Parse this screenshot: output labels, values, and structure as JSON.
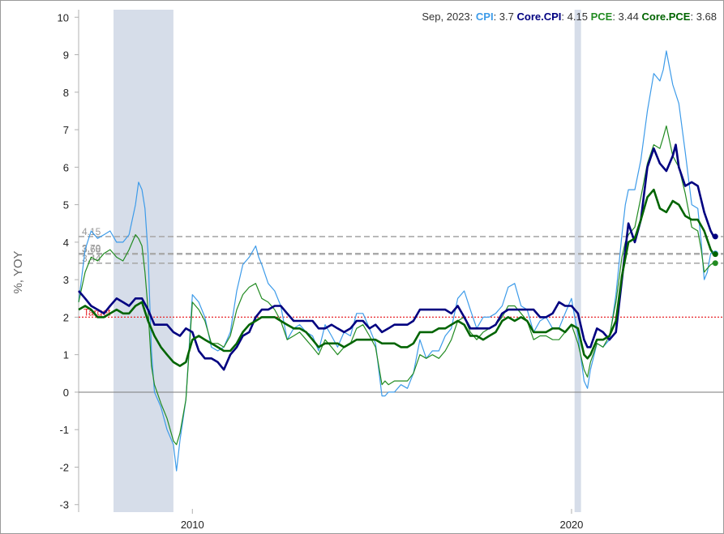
{
  "chart_data": {
    "type": "line",
    "ylabel": "%, YOY",
    "xlabel": "",
    "ylim": [
      -3.2,
      10.2
    ],
    "xlim": [
      2007.0,
      2024.0
    ],
    "yticks": [
      -3,
      -2,
      -1,
      0,
      1,
      2,
      3,
      4,
      5,
      6,
      7,
      8,
      9,
      10
    ],
    "xticks": [
      {
        "value": 2010,
        "label": "2010"
      },
      {
        "value": 2020,
        "label": "2020"
      }
    ],
    "recessions": [
      [
        2007.92,
        2009.5
      ],
      [
        2020.08,
        2020.25
      ]
    ],
    "target": {
      "value": 2,
      "label": "Target",
      "color": "#e8262a"
    },
    "legend": {
      "date_label": "Sep, 2023:",
      "items": [
        {
          "name": "CPI",
          "value": "3.7",
          "color": "#3d9be9"
        },
        {
          "name": "Core.CPI",
          "value": "4.15",
          "color": "#000080"
        },
        {
          "name": "PCE",
          "value": "3.44",
          "color": "#228b22"
        },
        {
          "name": "Core.PCE",
          "value": "3.68",
          "color": "#006400"
        }
      ]
    },
    "ref_lines": [
      {
        "value": 4.15,
        "label": "4.15"
      },
      {
        "value": 3.7,
        "label": "3.70"
      },
      {
        "value": 3.68,
        "label": "3.68"
      },
      {
        "value": 3.44,
        "label": "3.44"
      }
    ],
    "series": [
      {
        "name": "CPI",
        "color": "#3d9be9",
        "width": 1.2,
        "x": [
          2007.0,
          2007.17,
          2007.33,
          2007.5,
          2007.67,
          2007.83,
          2008.0,
          2008.17,
          2008.33,
          2008.5,
          2008.58,
          2008.67,
          2008.75,
          2008.83,
          2008.92,
          2009.0,
          2009.17,
          2009.33,
          2009.5,
          2009.58,
          2009.67,
          2009.83,
          2010.0,
          2010.17,
          2010.33,
          2010.5,
          2010.67,
          2010.83,
          2011.0,
          2011.17,
          2011.33,
          2011.5,
          2011.67,
          2011.75,
          2011.83,
          2012.0,
          2012.17,
          2012.33,
          2012.5,
          2012.67,
          2012.83,
          2013.0,
          2013.17,
          2013.33,
          2013.5,
          2013.67,
          2013.83,
          2014.0,
          2014.17,
          2014.33,
          2014.5,
          2014.67,
          2014.83,
          2015.0,
          2015.08,
          2015.17,
          2015.33,
          2015.5,
          2015.67,
          2015.83,
          2016.0,
          2016.17,
          2016.33,
          2016.5,
          2016.67,
          2016.83,
          2017.0,
          2017.17,
          2017.33,
          2017.5,
          2017.67,
          2017.83,
          2018.0,
          2018.17,
          2018.33,
          2018.5,
          2018.67,
          2018.83,
          2019.0,
          2019.17,
          2019.33,
          2019.5,
          2019.67,
          2019.83,
          2020.0,
          2020.17,
          2020.33,
          2020.42,
          2020.5,
          2020.67,
          2020.83,
          2021.0,
          2021.17,
          2021.33,
          2021.42,
          2021.5,
          2021.67,
          2021.83,
          2022.0,
          2022.17,
          2022.33,
          2022.42,
          2022.5,
          2022.67,
          2022.83,
          2023.0,
          2023.17,
          2023.33,
          2023.42,
          2023.5,
          2023.58,
          2023.67,
          2023.75
        ],
        "values": [
          2.4,
          3.8,
          4.3,
          4.1,
          4.2,
          4.3,
          4.0,
          4.0,
          4.2,
          5.0,
          5.6,
          5.4,
          4.9,
          3.7,
          1.1,
          0.0,
          -0.4,
          -1.0,
          -1.4,
          -2.1,
          -1.3,
          -0.2,
          2.6,
          2.4,
          2.0,
          1.2,
          1.1,
          1.2,
          1.6,
          2.7,
          3.4,
          3.6,
          3.9,
          3.6,
          3.4,
          2.9,
          2.7,
          2.3,
          1.4,
          1.7,
          1.8,
          1.6,
          1.5,
          1.1,
          1.8,
          1.5,
          1.2,
          1.6,
          1.5,
          2.1,
          2.1,
          1.7,
          1.3,
          -0.1,
          -0.1,
          0.0,
          0.0,
          0.2,
          0.1,
          0.5,
          1.4,
          0.9,
          1.1,
          1.1,
          1.5,
          1.7,
          2.5,
          2.7,
          2.2,
          1.7,
          2.0,
          2.0,
          2.1,
          2.3,
          2.8,
          2.9,
          2.3,
          2.2,
          1.6,
          1.9,
          2.0,
          1.7,
          1.7,
          2.1,
          2.5,
          1.5,
          0.3,
          0.1,
          0.6,
          1.3,
          1.2,
          1.4,
          2.6,
          4.2,
          5.0,
          5.4,
          5.4,
          6.2,
          7.5,
          8.5,
          8.3,
          8.6,
          9.1,
          8.2,
          7.7,
          6.4,
          5.0,
          4.9,
          4.0,
          3.0,
          3.2,
          3.7,
          3.7
        ]
      },
      {
        "name": "PCE",
        "color": "#228b22",
        "width": 1.2,
        "x": [
          2007.0,
          2007.17,
          2007.33,
          2007.5,
          2007.67,
          2007.83,
          2008.0,
          2008.17,
          2008.33,
          2008.5,
          2008.58,
          2008.67,
          2008.75,
          2008.83,
          2008.92,
          2009.0,
          2009.17,
          2009.33,
          2009.5,
          2009.58,
          2009.67,
          2009.83,
          2010.0,
          2010.17,
          2010.33,
          2010.5,
          2010.67,
          2010.83,
          2011.0,
          2011.17,
          2011.33,
          2011.5,
          2011.67,
          2011.75,
          2011.83,
          2012.0,
          2012.17,
          2012.33,
          2012.5,
          2012.67,
          2012.83,
          2013.0,
          2013.17,
          2013.33,
          2013.5,
          2013.67,
          2013.83,
          2014.0,
          2014.17,
          2014.33,
          2014.5,
          2014.67,
          2014.83,
          2015.0,
          2015.08,
          2015.17,
          2015.33,
          2015.5,
          2015.67,
          2015.83,
          2016.0,
          2016.17,
          2016.33,
          2016.5,
          2016.67,
          2016.83,
          2017.0,
          2017.17,
          2017.33,
          2017.5,
          2017.67,
          2017.83,
          2018.0,
          2018.17,
          2018.33,
          2018.5,
          2018.67,
          2018.83,
          2019.0,
          2019.17,
          2019.33,
          2019.5,
          2019.67,
          2019.83,
          2020.0,
          2020.17,
          2020.33,
          2020.42,
          2020.5,
          2020.67,
          2020.83,
          2021.0,
          2021.17,
          2021.33,
          2021.42,
          2021.5,
          2021.67,
          2021.83,
          2022.0,
          2022.17,
          2022.33,
          2022.42,
          2022.5,
          2022.67,
          2022.83,
          2023.0,
          2023.17,
          2023.33,
          2023.42,
          2023.5,
          2023.58,
          2023.67,
          2023.75
        ],
        "values": [
          2.4,
          3.2,
          3.6,
          3.5,
          3.7,
          3.8,
          3.6,
          3.5,
          3.8,
          4.2,
          4.1,
          3.9,
          3.2,
          2.2,
          0.7,
          0.2,
          -0.3,
          -0.7,
          -1.3,
          -1.4,
          -1.1,
          -0.2,
          2.4,
          2.2,
          1.9,
          1.3,
          1.3,
          1.2,
          1.5,
          2.2,
          2.6,
          2.8,
          2.9,
          2.7,
          2.5,
          2.4,
          2.2,
          1.9,
          1.4,
          1.5,
          1.6,
          1.4,
          1.2,
          1.0,
          1.4,
          1.2,
          1.0,
          1.2,
          1.3,
          1.7,
          1.8,
          1.5,
          1.2,
          0.2,
          0.3,
          0.2,
          0.3,
          0.3,
          0.3,
          0.5,
          1.0,
          0.9,
          1.0,
          0.9,
          1.1,
          1.4,
          1.9,
          2.0,
          1.6,
          1.4,
          1.6,
          1.7,
          1.8,
          2.0,
          2.3,
          2.3,
          2.1,
          1.9,
          1.4,
          1.5,
          1.5,
          1.4,
          1.4,
          1.6,
          1.8,
          1.3,
          0.6,
          0.4,
          0.8,
          1.3,
          1.2,
          1.5,
          2.4,
          3.6,
          4.0,
          4.2,
          4.4,
          5.2,
          6.1,
          6.6,
          6.5,
          6.8,
          7.1,
          6.3,
          6.0,
          5.3,
          4.4,
          4.3,
          3.8,
          3.2,
          3.3,
          3.4,
          3.44
        ]
      },
      {
        "name": "Core.CPI",
        "color": "#000080",
        "width": 2.6,
        "x": [
          2007.0,
          2007.17,
          2007.33,
          2007.5,
          2007.67,
          2007.83,
          2008.0,
          2008.17,
          2008.33,
          2008.5,
          2008.67,
          2008.83,
          2009.0,
          2009.17,
          2009.33,
          2009.5,
          2009.67,
          2009.83,
          2010.0,
          2010.17,
          2010.33,
          2010.5,
          2010.67,
          2010.83,
          2011.0,
          2011.17,
          2011.33,
          2011.5,
          2011.67,
          2011.83,
          2012.0,
          2012.17,
          2012.33,
          2012.5,
          2012.67,
          2012.83,
          2013.0,
          2013.17,
          2013.33,
          2013.5,
          2013.67,
          2013.83,
          2014.0,
          2014.17,
          2014.33,
          2014.5,
          2014.67,
          2014.83,
          2015.0,
          2015.17,
          2015.33,
          2015.5,
          2015.67,
          2015.83,
          2016.0,
          2016.17,
          2016.33,
          2016.5,
          2016.67,
          2016.83,
          2017.0,
          2017.17,
          2017.33,
          2017.5,
          2017.67,
          2017.83,
          2018.0,
          2018.17,
          2018.33,
          2018.5,
          2018.67,
          2018.83,
          2019.0,
          2019.17,
          2019.33,
          2019.5,
          2019.67,
          2019.83,
          2020.0,
          2020.17,
          2020.33,
          2020.42,
          2020.5,
          2020.67,
          2020.83,
          2021.0,
          2021.17,
          2021.33,
          2021.5,
          2021.67,
          2021.83,
          2022.0,
          2022.17,
          2022.33,
          2022.5,
          2022.67,
          2022.75,
          2022.83,
          2023.0,
          2023.17,
          2023.33,
          2023.5,
          2023.67,
          2023.75
        ],
        "values": [
          2.7,
          2.5,
          2.3,
          2.2,
          2.1,
          2.3,
          2.5,
          2.4,
          2.3,
          2.5,
          2.5,
          2.2,
          1.8,
          1.8,
          1.8,
          1.6,
          1.5,
          1.7,
          1.6,
          1.1,
          0.9,
          0.9,
          0.8,
          0.6,
          1.0,
          1.2,
          1.5,
          1.6,
          2.0,
          2.2,
          2.2,
          2.3,
          2.3,
          2.1,
          1.9,
          1.9,
          1.9,
          1.9,
          1.7,
          1.7,
          1.8,
          1.7,
          1.6,
          1.7,
          1.9,
          1.9,
          1.7,
          1.8,
          1.6,
          1.7,
          1.8,
          1.8,
          1.8,
          1.9,
          2.2,
          2.2,
          2.2,
          2.2,
          2.2,
          2.1,
          2.3,
          2.0,
          1.7,
          1.7,
          1.7,
          1.7,
          1.8,
          2.1,
          2.2,
          2.2,
          2.2,
          2.2,
          2.2,
          2.0,
          2.0,
          2.1,
          2.4,
          2.3,
          2.3,
          2.1,
          1.4,
          1.2,
          1.2,
          1.7,
          1.6,
          1.4,
          1.6,
          3.0,
          4.5,
          4.0,
          4.6,
          6.0,
          6.5,
          6.1,
          5.9,
          6.3,
          6.6,
          6.0,
          5.5,
          5.6,
          5.5,
          4.8,
          4.3,
          4.15
        ]
      },
      {
        "name": "Core.PCE",
        "color": "#006400",
        "width": 2.6,
        "x": [
          2007.0,
          2007.17,
          2007.33,
          2007.5,
          2007.67,
          2007.83,
          2008.0,
          2008.17,
          2008.33,
          2008.5,
          2008.67,
          2008.83,
          2009.0,
          2009.17,
          2009.33,
          2009.5,
          2009.67,
          2009.83,
          2010.0,
          2010.17,
          2010.33,
          2010.5,
          2010.67,
          2010.83,
          2011.0,
          2011.17,
          2011.33,
          2011.5,
          2011.67,
          2011.83,
          2012.0,
          2012.17,
          2012.33,
          2012.5,
          2012.67,
          2012.83,
          2013.0,
          2013.17,
          2013.33,
          2013.5,
          2013.67,
          2013.83,
          2014.0,
          2014.17,
          2014.33,
          2014.5,
          2014.67,
          2014.83,
          2015.0,
          2015.17,
          2015.33,
          2015.5,
          2015.67,
          2015.83,
          2016.0,
          2016.17,
          2016.33,
          2016.5,
          2016.67,
          2016.83,
          2017.0,
          2017.17,
          2017.33,
          2017.5,
          2017.67,
          2017.83,
          2018.0,
          2018.17,
          2018.33,
          2018.5,
          2018.67,
          2018.83,
          2019.0,
          2019.17,
          2019.33,
          2019.5,
          2019.67,
          2019.83,
          2020.0,
          2020.17,
          2020.33,
          2020.42,
          2020.5,
          2020.67,
          2020.83,
          2021.0,
          2021.17,
          2021.33,
          2021.5,
          2021.67,
          2021.83,
          2022.0,
          2022.17,
          2022.33,
          2022.5,
          2022.67,
          2022.83,
          2023.0,
          2023.17,
          2023.33,
          2023.5,
          2023.67,
          2023.75
        ],
        "values": [
          2.2,
          2.3,
          2.2,
          2.0,
          2.0,
          2.1,
          2.2,
          2.1,
          2.1,
          2.3,
          2.4,
          1.9,
          1.5,
          1.2,
          1.0,
          0.8,
          0.7,
          0.8,
          1.4,
          1.5,
          1.4,
          1.3,
          1.2,
          1.1,
          1.1,
          1.3,
          1.6,
          1.8,
          1.9,
          2.0,
          2.0,
          2.0,
          1.9,
          1.8,
          1.7,
          1.7,
          1.6,
          1.4,
          1.2,
          1.3,
          1.3,
          1.3,
          1.2,
          1.3,
          1.4,
          1.4,
          1.4,
          1.4,
          1.3,
          1.3,
          1.3,
          1.2,
          1.2,
          1.3,
          1.6,
          1.6,
          1.6,
          1.7,
          1.7,
          1.8,
          1.9,
          1.8,
          1.5,
          1.5,
          1.4,
          1.5,
          1.6,
          1.9,
          2.0,
          1.9,
          2.0,
          1.9,
          1.6,
          1.6,
          1.6,
          1.7,
          1.7,
          1.6,
          1.8,
          1.7,
          1.0,
          0.9,
          1.0,
          1.4,
          1.4,
          1.5,
          1.9,
          3.1,
          4.0,
          4.1,
          4.6,
          5.2,
          5.4,
          4.9,
          4.8,
          5.1,
          5.0,
          4.7,
          4.6,
          4.6,
          4.3,
          3.8,
          3.68
        ]
      }
    ]
  }
}
